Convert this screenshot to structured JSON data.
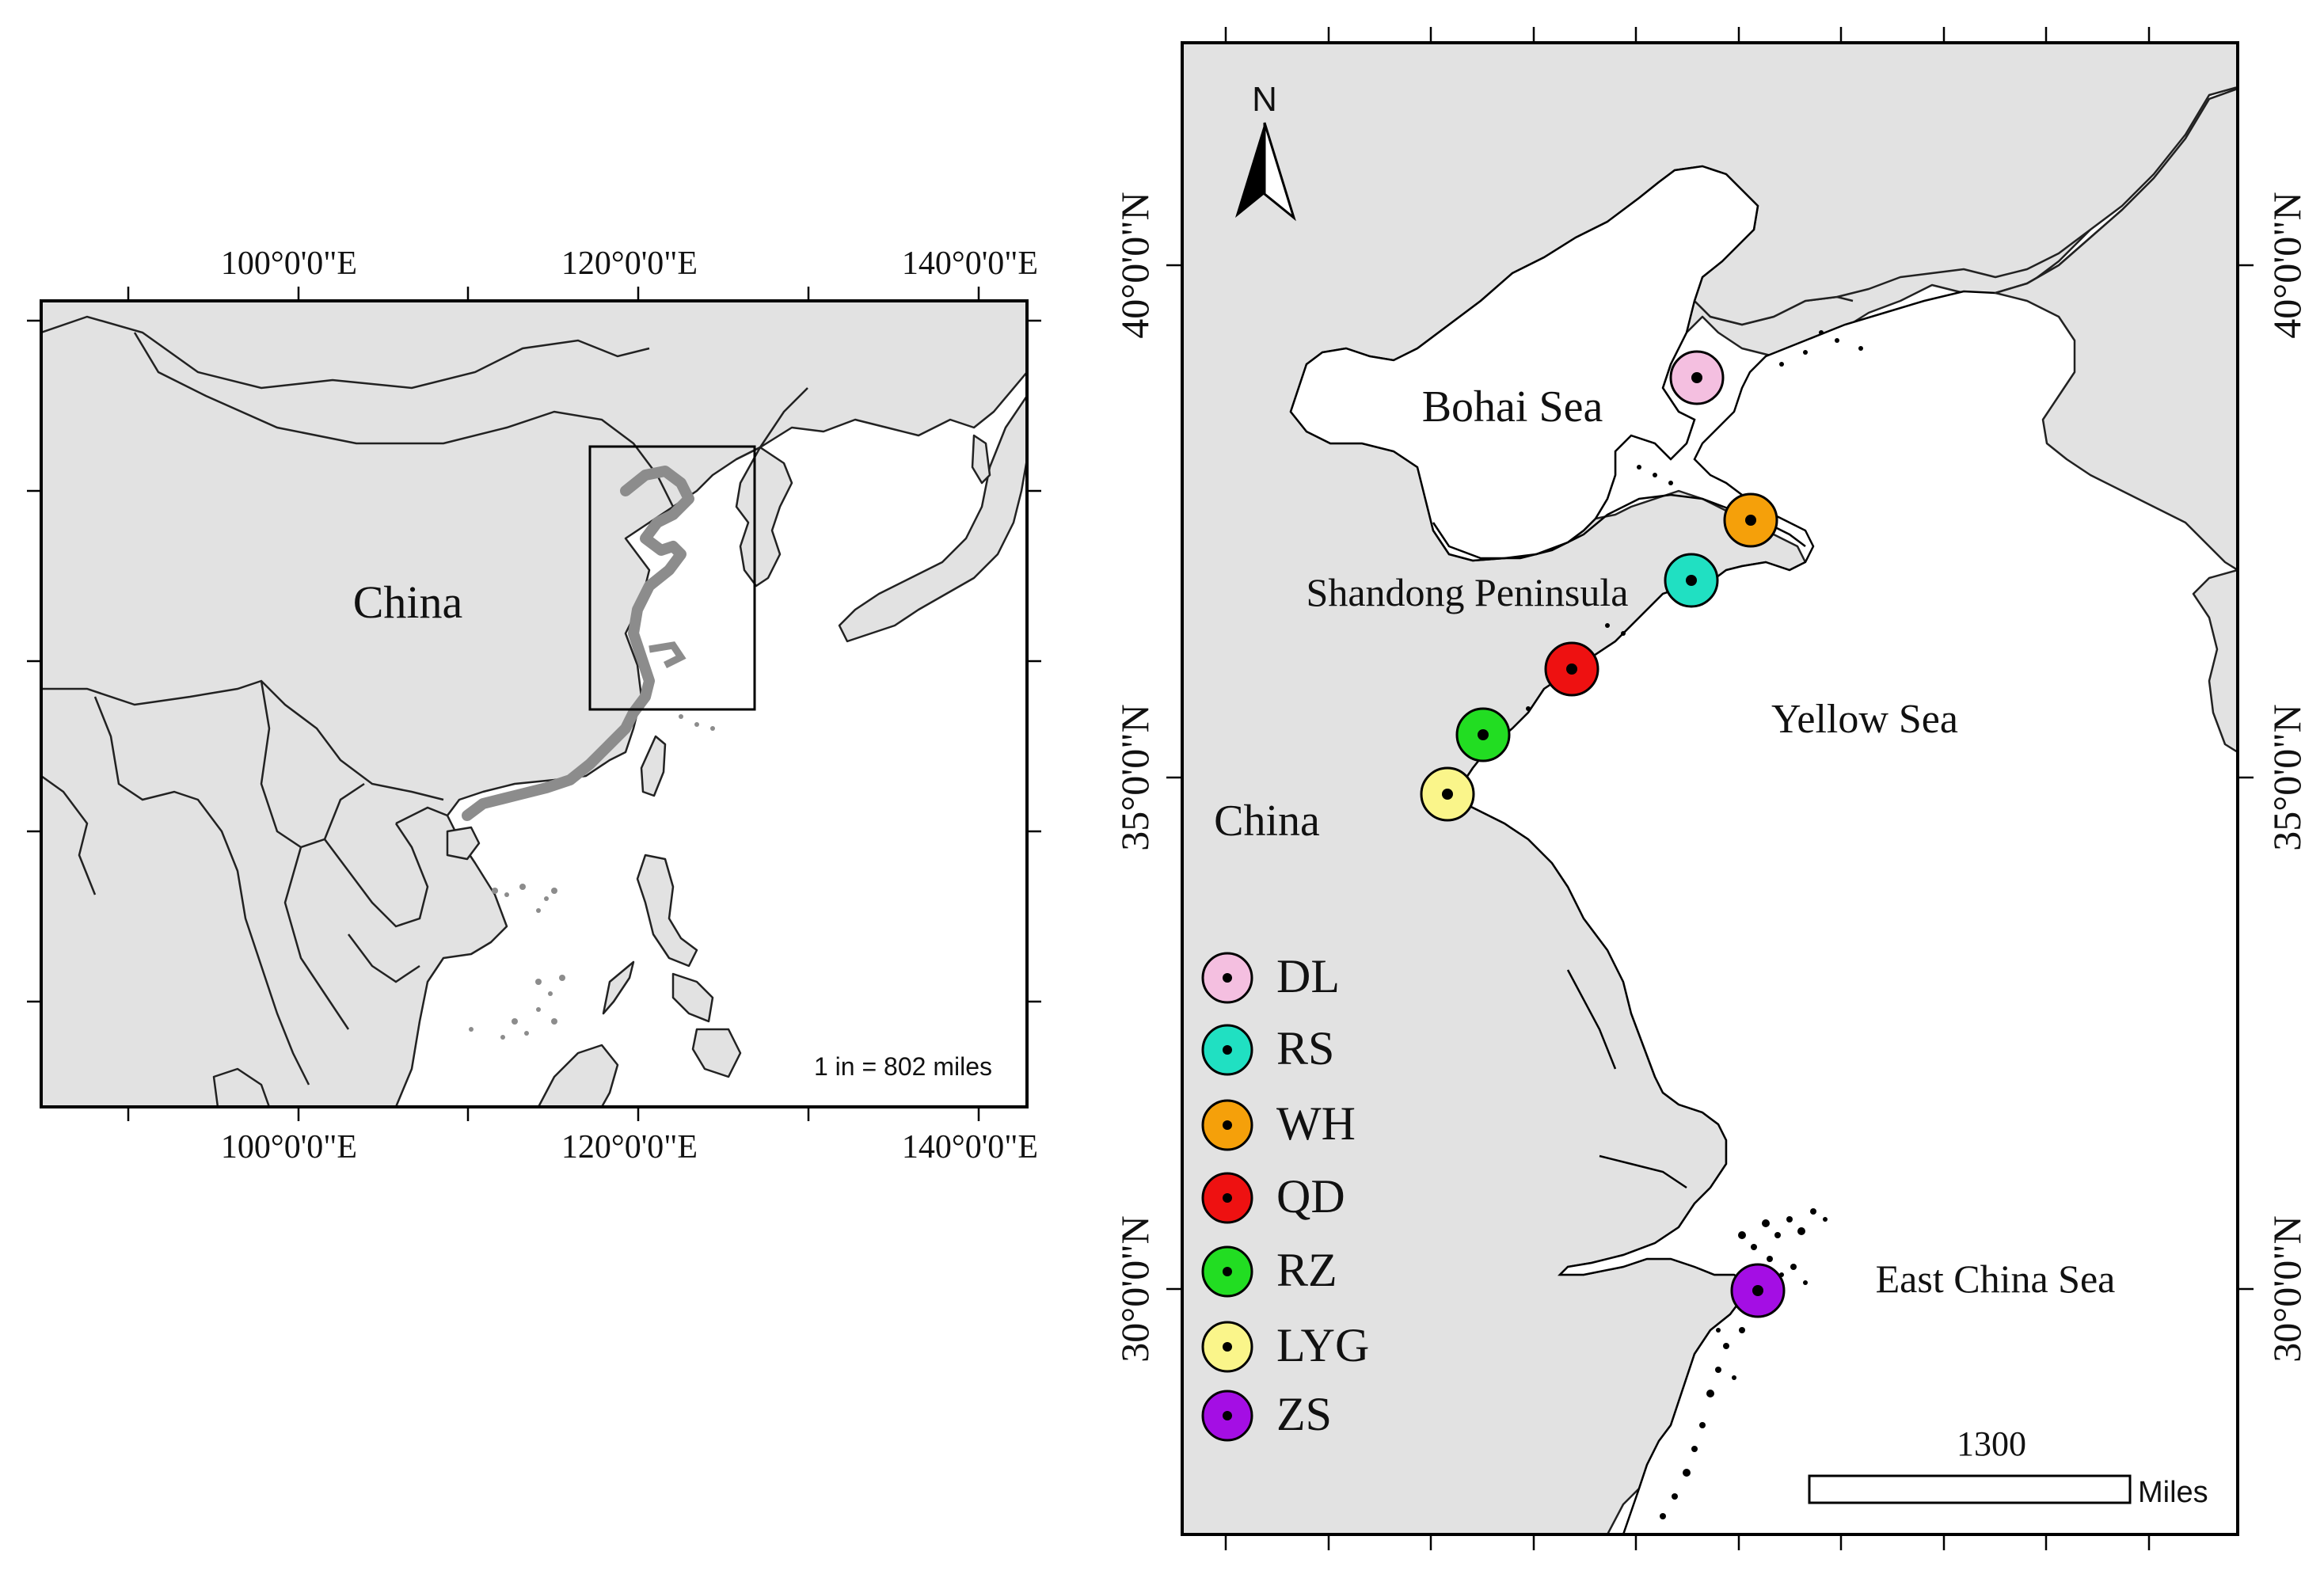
{
  "inset_map": {
    "top_ticks": [
      "100°0'0\"E",
      "120°0'0\"E",
      "140°0'0\"E"
    ],
    "bottom_ticks": [
      "100°0'0\"E",
      "120°0'0\"E",
      "140°0'0\"E"
    ],
    "country_label": "China",
    "scale_text": "1 in = 802 miles",
    "colors": {
      "land": "#e2e2e2",
      "coast_highlight": "#8c8c8c"
    }
  },
  "main_map": {
    "north_label": "N",
    "left_ticks": [
      "40°0'0\"N",
      "35°0'0\"N",
      "30°0'0\"N"
    ],
    "right_ticks": [
      "40°0'0\"N",
      "35°0'0\"N",
      "30°0'0\"N"
    ],
    "labels": {
      "bohai": "Bohai Sea",
      "shandong": "Shandong Peninsula",
      "yellow_sea": "Yellow Sea",
      "china": "China",
      "east_china_sea": "East China Sea"
    },
    "scale": {
      "value": "1300",
      "unit": "Miles"
    },
    "sites": [
      {
        "code": "DL",
        "color": "#f4bfe0"
      },
      {
        "code": "RS",
        "color": "#20e0c2"
      },
      {
        "code": "WH",
        "color": "#f5a00a"
      },
      {
        "code": "QD",
        "color": "#ee1111"
      },
      {
        "code": "RZ",
        "color": "#22dd22"
      },
      {
        "code": "LYG",
        "color": "#faf58a"
      },
      {
        "code": "ZS",
        "color": "#a40ee4"
      }
    ]
  }
}
